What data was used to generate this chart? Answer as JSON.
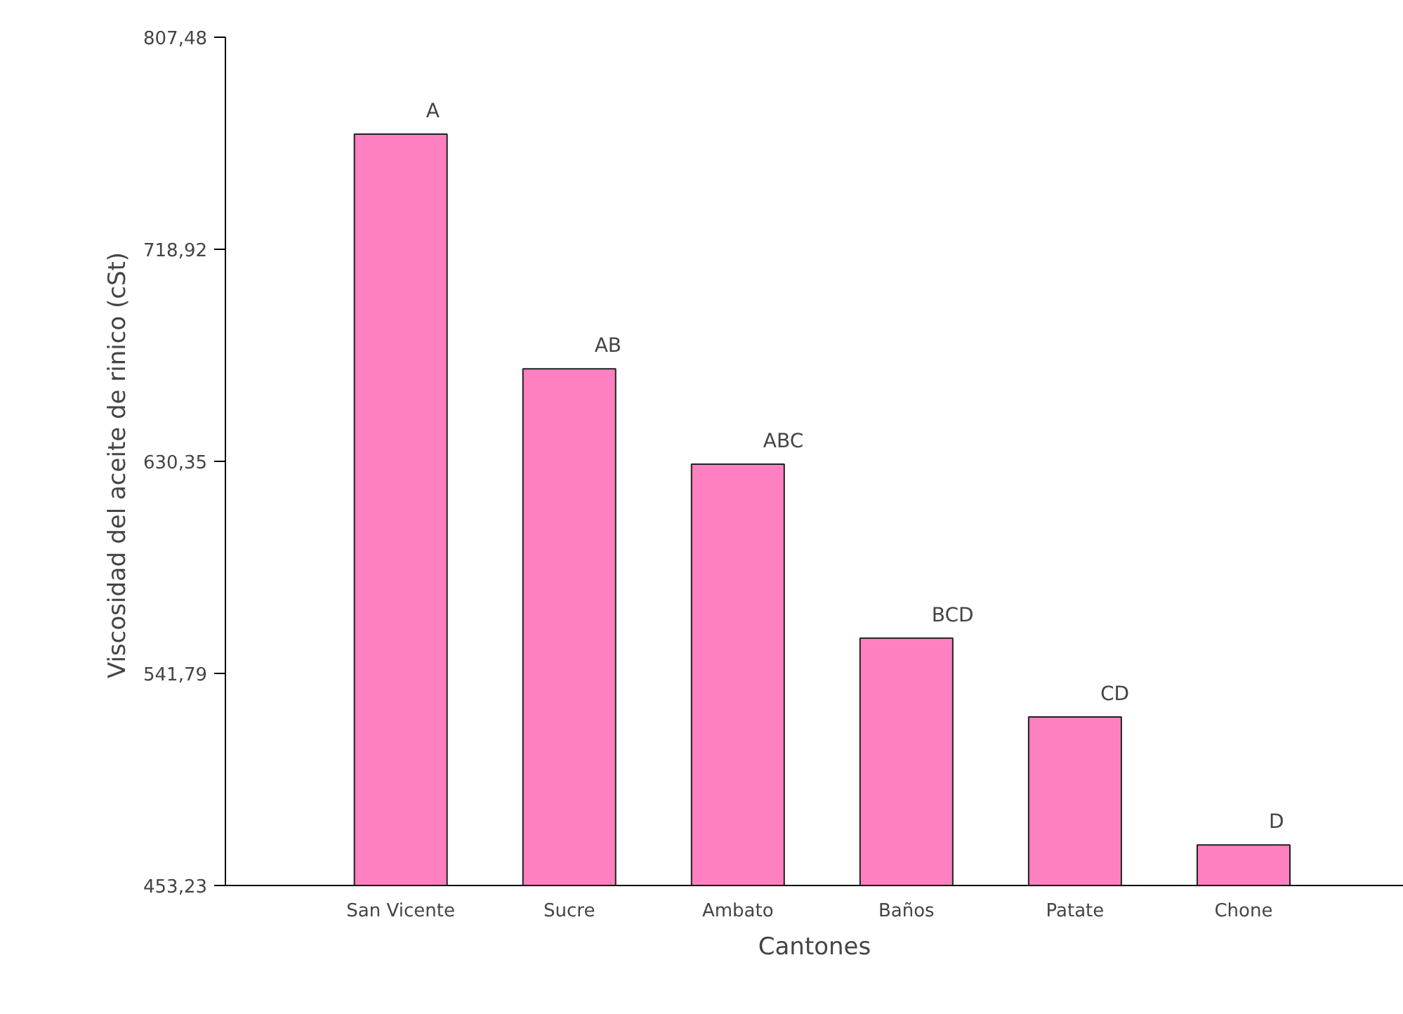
{
  "chart_data": {
    "type": "bar",
    "xlabel": "Cantones",
    "ylabel": "Viscosidad  del aceite de rinico (cSt)",
    "categories": [
      "San Vicente",
      "Sucre",
      "Ambato",
      "Baños",
      "Patate",
      "Chone"
    ],
    "values": [
      767.0,
      669.0,
      629.2,
      556.5,
      523.6,
      470.2
    ],
    "color": "#ff80c0",
    "ylim": [
      453.23,
      807.48
    ],
    "yticks": [
      {
        "value": 453.23,
        "label": "453,23"
      },
      {
        "value": 541.79,
        "label": "541,79"
      },
      {
        "value": 630.35,
        "label": "630,35"
      },
      {
        "value": 718.92,
        "label": "718,92"
      },
      {
        "value": 807.48,
        "label": "807,48"
      }
    ],
    "grid": false,
    "annotations": [
      {
        "text": "A",
        "x": "San Vicente",
        "y": 767.0
      },
      {
        "text": "AB",
        "x": "Sucre",
        "y": 669.0
      },
      {
        "text": "ABC",
        "x": "Ambato",
        "y": 629.2
      },
      {
        "text": "BCD",
        "x": "Baños",
        "y": 556.5
      },
      {
        "text": "CD",
        "x": "Patate",
        "y": 523.6
      },
      {
        "text": "D",
        "x": "Chone",
        "y": 470.2
      }
    ]
  }
}
